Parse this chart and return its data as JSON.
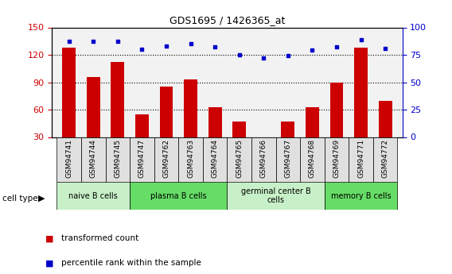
{
  "title": "GDS1695 / 1426365_at",
  "categories": [
    "GSM94741",
    "GSM94744",
    "GSM94745",
    "GSM94747",
    "GSM94762",
    "GSM94763",
    "GSM94764",
    "GSM94765",
    "GSM94766",
    "GSM94767",
    "GSM94768",
    "GSM94769",
    "GSM94771",
    "GSM94772"
  ],
  "bar_values": [
    128,
    96,
    112,
    55,
    85,
    93,
    63,
    47,
    30,
    47,
    63,
    90,
    128,
    70
  ],
  "percentile_values": [
    87,
    87,
    87,
    80,
    83,
    85,
    82,
    75,
    72,
    74,
    79,
    82,
    89,
    81
  ],
  "bar_color": "#cc0000",
  "dot_color": "#0000cc",
  "ylim_left": [
    30,
    150
  ],
  "ylim_right": [
    0,
    100
  ],
  "yticks_left": [
    30,
    60,
    90,
    120,
    150
  ],
  "yticks_right": [
    0,
    25,
    50,
    75,
    100
  ],
  "grid_lines": [
    60,
    90,
    120
  ],
  "cell_groups": [
    {
      "label": "naive B cells",
      "start": 0,
      "end": 2,
      "color": "#c8f0c8"
    },
    {
      "label": "plasma B cells",
      "start": 3,
      "end": 6,
      "color": "#66dd66"
    },
    {
      "label": "germinal center B\ncells",
      "start": 7,
      "end": 10,
      "color": "#c8f0c8"
    },
    {
      "label": "memory B cells",
      "start": 11,
      "end": 13,
      "color": "#66dd66"
    }
  ],
  "legend_bar_label": "transformed count",
  "legend_dot_label": "percentile rank within the sample",
  "cell_type_label": "cell type",
  "left_tick_color": "#cc0000",
  "right_axis_color": "#0000cc",
  "plot_bg_color": "#f2f2f2",
  "tick_label_bg": "#e0e0e0"
}
